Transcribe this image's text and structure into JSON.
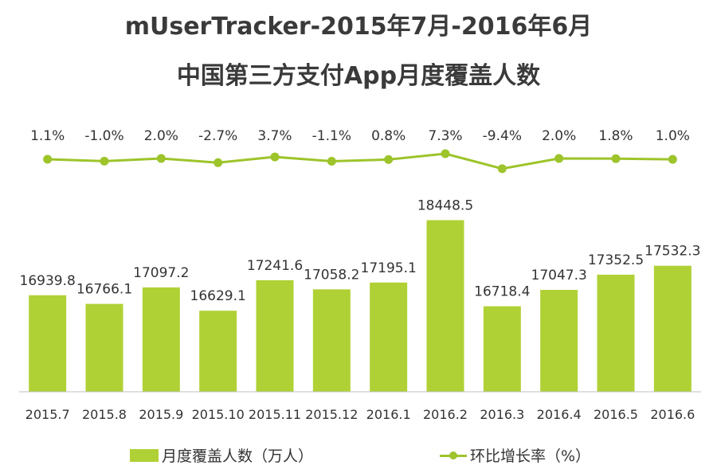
{
  "title_line1": "mUserTracker-2015年7月-2016年6月",
  "title_line2": "中国第三方支付App月度覆盖人数",
  "colors": {
    "bar": "#b0d135",
    "line": "#9dc42a",
    "axis": "#bfbfbf",
    "text": "#333333"
  },
  "legend": {
    "bar_label": "月度覆盖人数（万人）",
    "line_label": "环比增长率（%）"
  },
  "chart_data": {
    "type": "bar",
    "categories": [
      "2015.7",
      "2015.8",
      "2015.9",
      "2015.10",
      "2015.11",
      "2015.12",
      "2016.1",
      "2016.2",
      "2016.3",
      "2016.4",
      "2016.5",
      "2016.6"
    ],
    "series": [
      {
        "name": "月度覆盖人数（万人）",
        "type": "bar",
        "values": [
          16939.8,
          16766.1,
          17097.2,
          16629.1,
          17241.6,
          17058.2,
          17195.1,
          18448.5,
          16718.4,
          17047.3,
          17352.5,
          17532.3
        ],
        "labels": [
          "16939.8",
          "16766.1",
          "17097.2",
          "16629.1",
          "17241.6",
          "17058.2",
          "17195.1",
          "18448.5",
          "16718.4",
          "17047.3",
          "17352.5",
          "17532.3"
        ]
      },
      {
        "name": "环比增长率（%）",
        "type": "line",
        "values": [
          1.1,
          -1.0,
          2.0,
          -2.7,
          3.7,
          -1.1,
          0.8,
          7.3,
          -9.4,
          2.0,
          1.8,
          1.0
        ],
        "labels": [
          "1.1%",
          "-1.0%",
          "2.0%",
          "-2.7%",
          "3.7%",
          "-1.1%",
          "0.8%",
          "7.3%",
          "-9.4%",
          "2.0%",
          "1.8%",
          "1.0%"
        ]
      }
    ],
    "ylim": [
      15000,
      19000
    ],
    "line_ylim": [
      -40,
      12
    ],
    "xlabel": "",
    "ylabel": "",
    "grid": false,
    "legend_position": "bottom"
  }
}
